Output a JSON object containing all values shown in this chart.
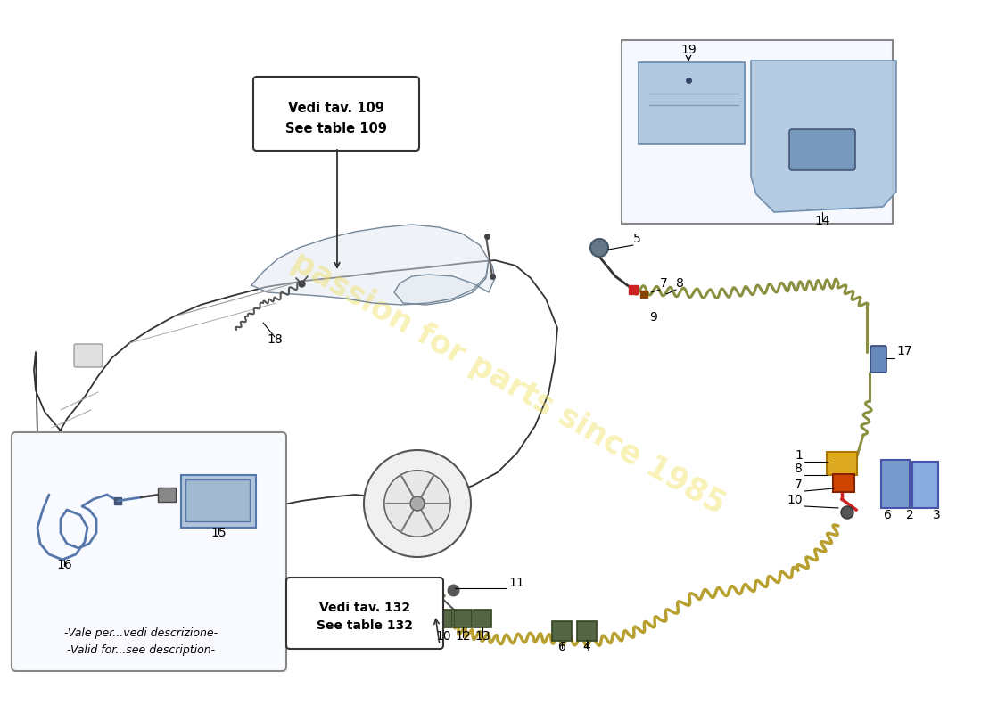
{
  "bg": "#ffffff",
  "watermark": "passion for parts since 1985",
  "wm_color": "#f0e060",
  "wm_alpha": 0.45,
  "wire_olive": "#8a9040",
  "wire_gold": "#b8a030",
  "wire_red": "#cc2222",
  "connector_blue": "#5577aa",
  "panel_blue": "#b0c8e0",
  "car_edge": "#333333",
  "car_fill": "#f0f0f0",
  "note1": "Vedi tav. 109\nSee table 109",
  "note2": "Vedi tav. 132\nSee table 132",
  "bottom_note": "-Vale per...vedi descrizione-\n-Valid for...see description-",
  "label18": "18",
  "label19": "19",
  "label14": "14"
}
